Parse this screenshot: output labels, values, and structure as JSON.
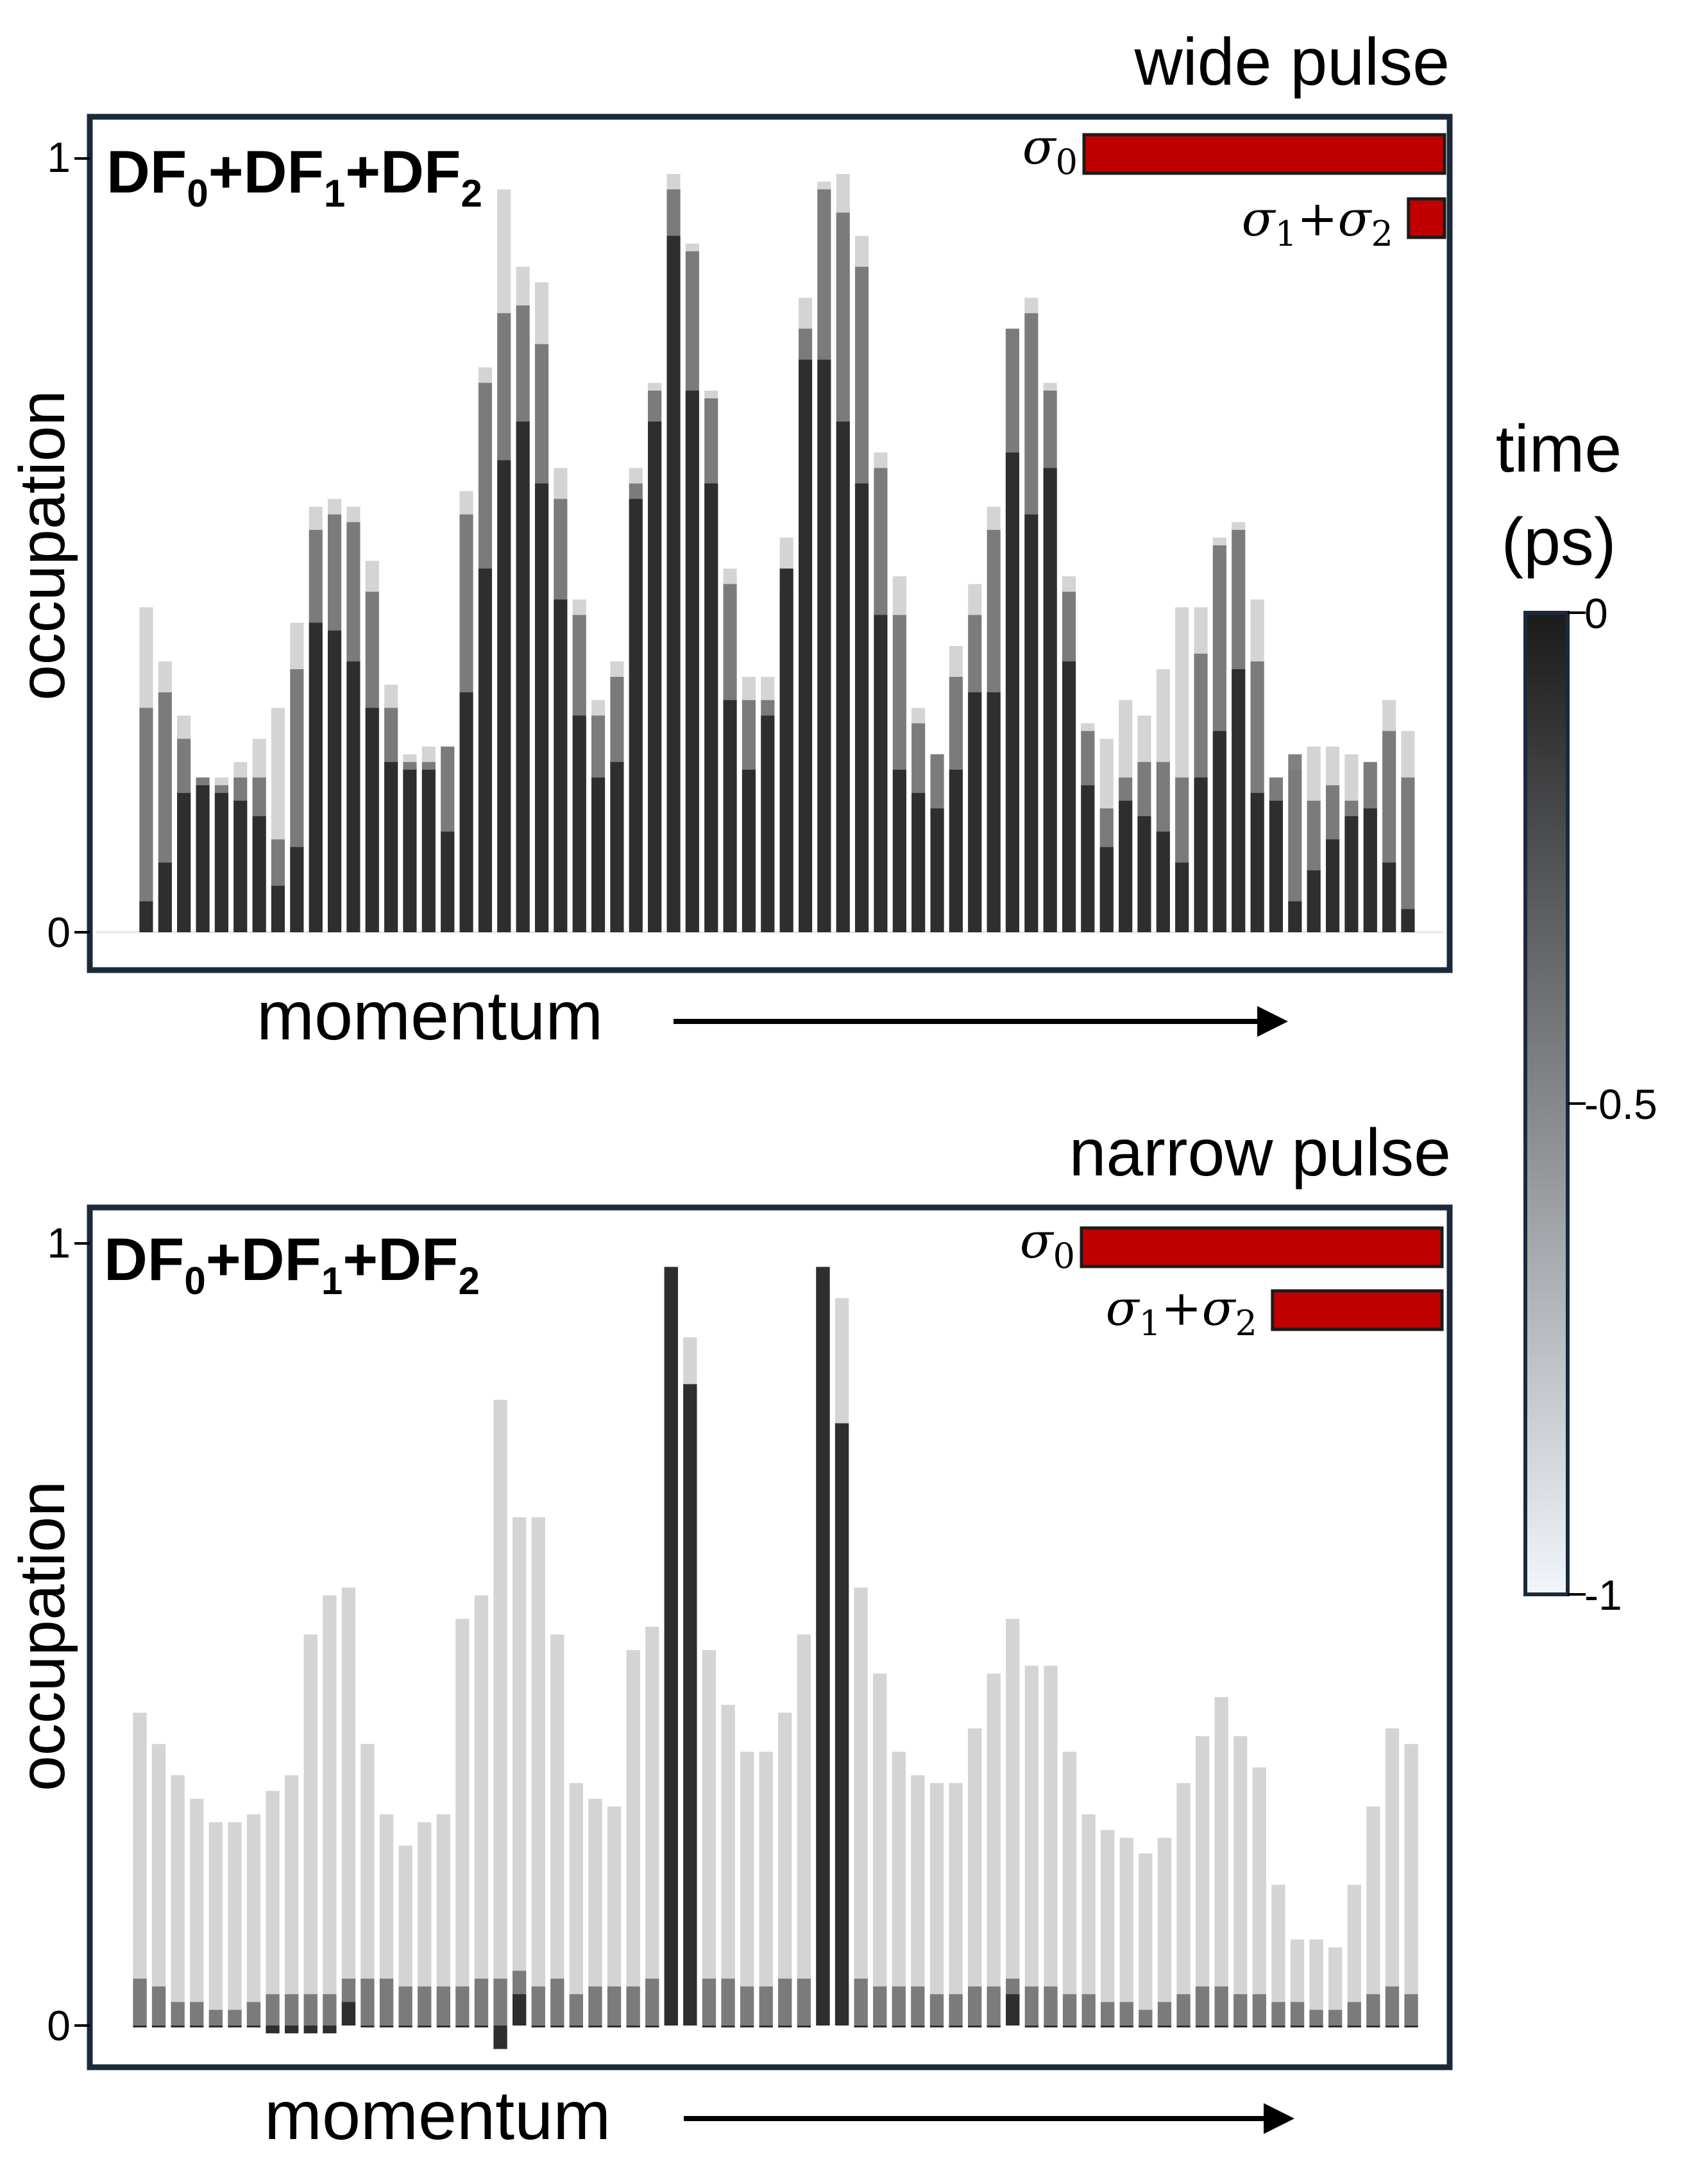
{
  "colorbar": {
    "title_line1": "time",
    "title_line2": "(ps)",
    "ticks": [
      {
        "value": 0,
        "label": "0"
      },
      {
        "value": 0.5,
        "label": "-0.5"
      },
      {
        "value": 1,
        "label": "-1"
      }
    ],
    "color_dark": "#1b1b1b",
    "color_light": "#f1f6fc"
  },
  "colors": {
    "frame": "#1b2a3a",
    "sigma_bar": "#c00000"
  },
  "panels": [
    {
      "id": "wide",
      "title": "wide pulse",
      "label_parts": [
        "DF",
        "0",
        "+DF",
        "1",
        "+DF",
        "2"
      ],
      "ylabel": "occupation",
      "xlabel": "momentum",
      "ytick_top": "1",
      "ytick_bottom": "0",
      "legend": [
        {
          "sym": "σ",
          "sub": "0",
          "length": 1.0
        },
        {
          "sym": "σ",
          "sub": "1",
          "plus": "+",
          "sym2": "σ",
          "sub2": "2",
          "length": 0.1
        }
      ]
    },
    {
      "id": "narrow",
      "title": "narrow pulse",
      "label_parts": [
        "DF",
        "0",
        "+DF",
        "1",
        "+DF",
        "2"
      ],
      "ylabel": "occupation",
      "xlabel": "momentum",
      "ytick_top": "1",
      "ytick_bottom": "0",
      "legend": [
        {
          "sym": "σ",
          "sub": "0",
          "length": 1.0
        },
        {
          "sym": "σ",
          "sub": "1",
          "plus": "+",
          "sym2": "σ",
          "sub2": "2",
          "length": 0.47
        }
      ]
    }
  ],
  "chart_data": [
    {
      "type": "bar",
      "title": "wide pulse",
      "xlabel": "momentum",
      "ylabel": "occupation",
      "ylim": [
        0,
        1
      ],
      "color_encoding": "time (ps), 0 = dark, -1 = light",
      "series": [
        {
          "name": "0",
          "values": [
            0.04,
            0.09,
            0.18,
            0.19,
            0.18,
            0.17,
            0.15,
            0.06,
            0.11,
            0.4,
            0.39,
            0.35,
            0.29,
            0.22,
            0.21,
            0.21,
            0.13,
            0.31,
            0.47,
            0.61,
            0.66,
            0.58,
            0.43,
            0.28,
            0.2,
            0.22,
            0.56,
            0.66,
            0.9,
            0.7,
            0.58,
            0.3,
            0.21,
            0.28,
            0.47,
            0.74,
            0.74,
            0.66,
            0.58,
            0.41,
            0.21,
            0.18,
            0.16,
            0.21,
            0.31,
            0.31,
            0.62,
            0.54,
            0.6,
            0.35,
            0.19,
            0.11,
            0.17,
            0.15,
            0.13,
            0.09,
            0.2,
            0.26,
            0.34,
            0.18,
            0.17,
            0.04,
            0.08,
            0.12,
            0.15,
            0.16,
            0.09,
            0.03
          ]
        },
        {
          "name": "-0.5",
          "values": [
            0.29,
            0.31,
            0.25,
            0.2,
            0.19,
            0.2,
            0.2,
            0.12,
            0.34,
            0.52,
            0.54,
            0.53,
            0.44,
            0.29,
            0.22,
            0.22,
            0.24,
            0.54,
            0.71,
            0.8,
            0.81,
            0.76,
            0.56,
            0.41,
            0.28,
            0.33,
            0.58,
            0.7,
            0.96,
            0.88,
            0.69,
            0.45,
            0.3,
            0.3,
            0.44,
            0.78,
            0.96,
            0.93,
            0.86,
            0.6,
            0.41,
            0.27,
            0.23,
            0.33,
            0.41,
            0.52,
            0.78,
            0.8,
            0.7,
            0.44,
            0.26,
            0.16,
            0.2,
            0.22,
            0.22,
            0.2,
            0.36,
            0.5,
            0.52,
            0.35,
            0.2,
            0.23,
            0.17,
            0.19,
            0.17,
            0.22,
            0.26,
            0.2
          ]
        },
        {
          "name": "-1",
          "values": [
            0.42,
            0.35,
            0.28,
            0.2,
            0.2,
            0.22,
            0.25,
            0.29,
            0.4,
            0.55,
            0.56,
            0.55,
            0.48,
            0.32,
            0.23,
            0.24,
            0.24,
            0.57,
            0.73,
            0.96,
            0.86,
            0.84,
            0.6,
            0.43,
            0.3,
            0.35,
            0.6,
            0.71,
            0.98,
            0.89,
            0.7,
            0.47,
            0.33,
            0.33,
            0.51,
            0.82,
            0.97,
            0.98,
            0.9,
            0.62,
            0.46,
            0.29,
            0.23,
            0.37,
            0.45,
            0.55,
            0.78,
            0.82,
            0.71,
            0.46,
            0.27,
            0.25,
            0.3,
            0.28,
            0.34,
            0.42,
            0.42,
            0.51,
            0.53,
            0.43,
            0.2,
            0.21,
            0.24,
            0.24,
            0.23,
            0.22,
            0.3,
            0.26
          ]
        }
      ]
    },
    {
      "type": "bar",
      "title": "narrow pulse",
      "xlabel": "momentum",
      "ylabel": "occupation",
      "ylim": [
        0,
        1
      ],
      "color_encoding": "time (ps), 0 = dark, -1 = light",
      "series": [
        {
          "name": "0",
          "values": [
            0.0,
            0.0,
            0.0,
            0.0,
            0.0,
            0.0,
            0.0,
            -0.01,
            -0.01,
            -0.01,
            -0.01,
            0.03,
            0.0,
            0.0,
            0.0,
            0.0,
            0.0,
            0.0,
            0.0,
            -0.03,
            0.04,
            0.0,
            0.0,
            0.0,
            0.0,
            0.0,
            0.0,
            0.0,
            0.97,
            0.82,
            0.0,
            0.0,
            0.0,
            0.0,
            0.0,
            0.0,
            0.97,
            0.77,
            0.0,
            0.0,
            0.0,
            0.0,
            0.0,
            0.0,
            0.0,
            0.0,
            0.04,
            0.0,
            0.0,
            0.0,
            0.0,
            0.0,
            0.0,
            0.0,
            0.0,
            0.0,
            0.0,
            0.0,
            0.0,
            0.0,
            0.0,
            0.0,
            0.0,
            0.0,
            0.0,
            0.0,
            0.0,
            0.0
          ]
        },
        {
          "name": "-0.5",
          "values": [
            0.06,
            0.05,
            0.03,
            0.03,
            0.02,
            0.02,
            0.03,
            0.04,
            0.04,
            0.04,
            0.04,
            0.06,
            0.06,
            0.06,
            0.05,
            0.05,
            0.05,
            0.05,
            0.06,
            0.06,
            0.07,
            0.05,
            0.06,
            0.04,
            0.05,
            0.05,
            0.05,
            0.06,
            0.97,
            0.82,
            0.06,
            0.06,
            0.05,
            0.05,
            0.06,
            0.06,
            0.97,
            0.77,
            0.06,
            0.05,
            0.05,
            0.05,
            0.04,
            0.04,
            0.05,
            0.05,
            0.06,
            0.05,
            0.05,
            0.04,
            0.04,
            0.03,
            0.03,
            0.02,
            0.03,
            0.04,
            0.05,
            0.05,
            0.04,
            0.04,
            0.03,
            0.03,
            0.02,
            0.02,
            0.03,
            0.04,
            0.05,
            0.04
          ]
        },
        {
          "name": "-1",
          "values": [
            0.4,
            0.36,
            0.32,
            0.29,
            0.26,
            0.26,
            0.27,
            0.3,
            0.32,
            0.5,
            0.55,
            0.56,
            0.36,
            0.27,
            0.23,
            0.26,
            0.27,
            0.52,
            0.55,
            0.8,
            0.65,
            0.65,
            0.5,
            0.31,
            0.29,
            0.28,
            0.48,
            0.51,
            0.88,
            0.88,
            0.48,
            0.41,
            0.35,
            0.35,
            0.4,
            0.5,
            0.95,
            0.93,
            0.56,
            0.45,
            0.35,
            0.32,
            0.31,
            0.31,
            0.38,
            0.45,
            0.52,
            0.46,
            0.46,
            0.35,
            0.27,
            0.25,
            0.24,
            0.22,
            0.24,
            0.31,
            0.37,
            0.42,
            0.37,
            0.33,
            0.18,
            0.11,
            0.11,
            0.1,
            0.18,
            0.28,
            0.38,
            0.36
          ]
        }
      ]
    }
  ]
}
